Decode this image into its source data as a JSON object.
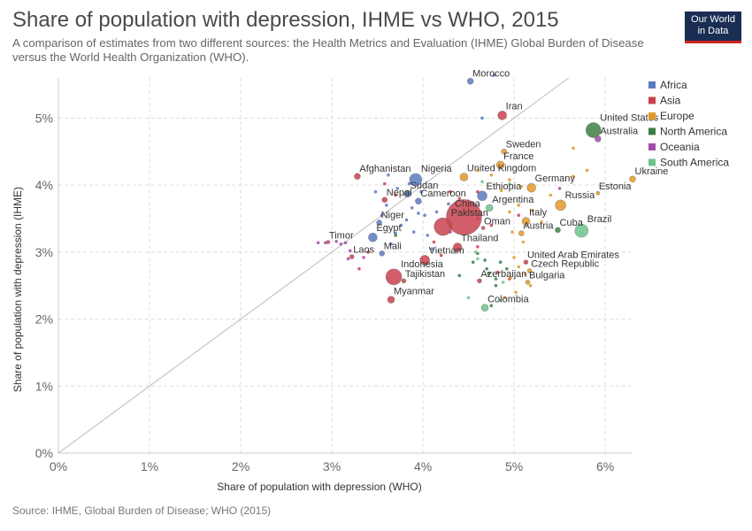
{
  "title": "Share of population with depression, IHME vs WHO, 2015",
  "subtitle": "A comparison of estimates from two different sources: the Health Metrics and Evaluation (IHME) Global Burden of Disease versus the World Health Organization (WHO).",
  "logo": {
    "line1": "Our World",
    "line2": "in Data"
  },
  "source": "Source: IHME, Global Burden of Disease; WHO (2015)",
  "chart_data": {
    "type": "scatter",
    "xlabel": "Share of population with depression (WHO)",
    "ylabel": "Share of population with depression (IHME)",
    "xlim": [
      0,
      6.3
    ],
    "ylim": [
      0,
      5.6
    ],
    "xticks": [
      0,
      1,
      2,
      3,
      4,
      5,
      6
    ],
    "yticks": [
      0,
      1,
      2,
      3,
      4,
      5
    ],
    "x_tick_labels": [
      "0%",
      "1%",
      "2%",
      "3%",
      "4%",
      "5%",
      "6%"
    ],
    "y_tick_labels": [
      "0%",
      "1%",
      "2%",
      "3%",
      "4%",
      "5%"
    ],
    "grid": true,
    "diagonal_line": true,
    "legend_position": "right",
    "series": [
      {
        "name": "Africa",
        "color": "#5b7bc1"
      },
      {
        "name": "Asia",
        "color": "#c9424d"
      },
      {
        "name": "Europe",
        "color": "#e39927"
      },
      {
        "name": "North America",
        "color": "#3d7f44"
      },
      {
        "name": "Oceania",
        "color": "#a34bab"
      },
      {
        "name": "South America",
        "color": "#6cc38e"
      }
    ],
    "labeled_points": [
      {
        "label": "Morocco",
        "region": "Africa",
        "x": 4.52,
        "y": 5.55,
        "r": 3.5
      },
      {
        "label": "Iran",
        "region": "Asia",
        "x": 4.87,
        "y": 5.04,
        "r": 5
      },
      {
        "label": "United States",
        "region": "North America",
        "x": 5.87,
        "y": 4.82,
        "r": 8.5
      },
      {
        "label": "Australia",
        "region": "Oceania",
        "x": 5.92,
        "y": 4.69,
        "r": 3.5
      },
      {
        "label": "Sweden",
        "region": "Europe",
        "x": 4.89,
        "y": 4.5,
        "r": 3
      },
      {
        "label": "France",
        "region": "Europe",
        "x": 4.85,
        "y": 4.3,
        "r": 4.5
      },
      {
        "label": "United Kingdom",
        "region": "Europe",
        "x": 4.45,
        "y": 4.12,
        "r": 4.5
      },
      {
        "label": "Afghanistan",
        "region": "Asia",
        "x": 3.28,
        "y": 4.13,
        "r": 3.5
      },
      {
        "label": "Nigeria",
        "region": "Africa",
        "x": 3.92,
        "y": 4.08,
        "r": 7
      },
      {
        "label": "Ukraine",
        "region": "Europe",
        "x": 6.3,
        "y": 4.09,
        "r": 3.5
      },
      {
        "label": "Germany",
        "region": "Europe",
        "x": 5.19,
        "y": 3.96,
        "r": 5
      },
      {
        "label": "Estonia",
        "region": "Europe",
        "x": 5.92,
        "y": 3.88,
        "r": 2
      },
      {
        "label": "Ethiopia",
        "region": "Africa",
        "x": 4.65,
        "y": 3.84,
        "r": 5.5
      },
      {
        "label": "Sudan",
        "region": "Africa",
        "x": 3.83,
        "y": 3.87,
        "r": 4
      },
      {
        "label": "Cameroon",
        "region": "Africa",
        "x": 3.95,
        "y": 3.76,
        "r": 3.5
      },
      {
        "label": "Nepal",
        "region": "Asia",
        "x": 3.58,
        "y": 3.78,
        "r": 3
      },
      {
        "label": "Russia",
        "region": "Europe",
        "x": 5.51,
        "y": 3.7,
        "r": 6
      },
      {
        "label": "Argentina",
        "region": "South America",
        "x": 4.73,
        "y": 3.66,
        "r": 4
      },
      {
        "label": "China",
        "region": "Asia",
        "x": 4.45,
        "y": 3.52,
        "r": 20
      },
      {
        "label": "Niger",
        "region": "Africa",
        "x": 3.52,
        "y": 3.44,
        "r": 3
      },
      {
        "label": "Pakistan",
        "region": "Asia",
        "x": 4.22,
        "y": 3.38,
        "r": 10
      },
      {
        "label": "Oman",
        "region": "Asia",
        "x": 4.66,
        "y": 3.36,
        "r": 2
      },
      {
        "label": "Italy",
        "region": "Europe",
        "x": 5.13,
        "y": 3.46,
        "r": 4.5
      },
      {
        "label": "Cuba",
        "region": "North America",
        "x": 5.48,
        "y": 3.33,
        "r": 3
      },
      {
        "label": "Brazil",
        "region": "South America",
        "x": 5.74,
        "y": 3.32,
        "r": 7.5
      },
      {
        "label": "Egypt",
        "region": "Africa",
        "x": 3.45,
        "y": 3.22,
        "r": 5
      },
      {
        "label": "Austria",
        "region": "Europe",
        "x": 5.08,
        "y": 3.28,
        "r": 3
      },
      {
        "label": "Timor",
        "region": "Asia",
        "x": 2.96,
        "y": 3.15,
        "r": 2
      },
      {
        "label": "Thailand",
        "region": "Asia",
        "x": 4.38,
        "y": 3.07,
        "r": 5
      },
      {
        "label": "Mali",
        "region": "Africa",
        "x": 3.55,
        "y": 2.98,
        "r": 3
      },
      {
        "label": "Laos",
        "region": "Asia",
        "x": 3.22,
        "y": 2.93,
        "r": 2.5
      },
      {
        "label": "Vietnam",
        "region": "Asia",
        "x": 4.02,
        "y": 2.88,
        "r": 5.5
      },
      {
        "label": "United Arab Emirates",
        "region": "Asia",
        "x": 5.13,
        "y": 2.85,
        "r": 2.5
      },
      {
        "label": "Indonesia",
        "region": "Asia",
        "x": 3.68,
        "y": 2.63,
        "r": 9
      },
      {
        "label": "Tajikistan",
        "region": "Asia",
        "x": 3.79,
        "y": 2.57,
        "r": 2.5
      },
      {
        "label": "Czech Republic",
        "region": "Europe",
        "x": 5.17,
        "y": 2.72,
        "r": 2.5
      },
      {
        "label": "Azerbaijan",
        "region": "Asia",
        "x": 4.62,
        "y": 2.57,
        "r": 2.5
      },
      {
        "label": "Bulgaria",
        "region": "Europe",
        "x": 5.15,
        "y": 2.55,
        "r": 2.5
      },
      {
        "label": "Myanmar",
        "region": "Asia",
        "x": 3.65,
        "y": 2.29,
        "r": 4
      },
      {
        "label": "Colombia",
        "region": "South America",
        "x": 4.68,
        "y": 2.17,
        "r": 4
      }
    ],
    "unlabeled_points": [
      {
        "region": "Africa",
        "x": 4.78,
        "y": 5.64
      },
      {
        "region": "Africa",
        "x": 4.65,
        "y": 5.0
      },
      {
        "region": "Africa",
        "x": 3.62,
        "y": 4.15
      },
      {
        "region": "Africa",
        "x": 3.85,
        "y": 4.02
      },
      {
        "region": "Africa",
        "x": 3.72,
        "y": 3.95
      },
      {
        "region": "Africa",
        "x": 3.48,
        "y": 3.9
      },
      {
        "region": "Africa",
        "x": 3.6,
        "y": 3.7
      },
      {
        "region": "Africa",
        "x": 3.88,
        "y": 3.66
      },
      {
        "region": "Africa",
        "x": 3.95,
        "y": 3.58
      },
      {
        "region": "Africa",
        "x": 4.02,
        "y": 3.55
      },
      {
        "region": "Africa",
        "x": 3.82,
        "y": 3.48
      },
      {
        "region": "Africa",
        "x": 3.76,
        "y": 3.4
      },
      {
        "region": "Africa",
        "x": 3.9,
        "y": 3.3
      },
      {
        "region": "Africa",
        "x": 4.05,
        "y": 3.25
      },
      {
        "region": "Africa",
        "x": 3.7,
        "y": 3.28
      },
      {
        "region": "Africa",
        "x": 4.15,
        "y": 3.6
      },
      {
        "region": "Africa",
        "x": 4.28,
        "y": 3.72
      },
      {
        "region": "Africa",
        "x": 3.65,
        "y": 3.12
      },
      {
        "region": "Africa",
        "x": 3.98,
        "y": 3.9
      },
      {
        "region": "Africa",
        "x": 4.1,
        "y": 3.05
      },
      {
        "region": "Africa",
        "x": 4.55,
        "y": 3.72
      },
      {
        "region": "Africa",
        "x": 3.55,
        "y": 3.55
      },
      {
        "region": "Asia",
        "x": 3.58,
        "y": 4.02
      },
      {
        "region": "Asia",
        "x": 3.7,
        "y": 3.85
      },
      {
        "region": "Asia",
        "x": 4.3,
        "y": 3.9
      },
      {
        "region": "Asia",
        "x": 4.4,
        "y": 3.8
      },
      {
        "region": "Asia",
        "x": 4.5,
        "y": 3.62
      },
      {
        "region": "Asia",
        "x": 4.6,
        "y": 3.5
      },
      {
        "region": "Asia",
        "x": 4.75,
        "y": 3.4
      },
      {
        "region": "Asia",
        "x": 4.12,
        "y": 3.15
      },
      {
        "region": "Asia",
        "x": 3.3,
        "y": 2.75
      },
      {
        "region": "Asia",
        "x": 3.4,
        "y": 3.0
      },
      {
        "region": "Asia",
        "x": 4.6,
        "y": 3.08
      },
      {
        "region": "Asia",
        "x": 4.82,
        "y": 2.7
      },
      {
        "region": "Asia",
        "x": 4.95,
        "y": 2.6
      },
      {
        "region": "Asia",
        "x": 4.6,
        "y": 3.9
      },
      {
        "region": "Asia",
        "x": 4.2,
        "y": 2.95
      },
      {
        "region": "Asia",
        "x": 5.05,
        "y": 3.55
      },
      {
        "region": "Europe",
        "x": 4.6,
        "y": 4.22
      },
      {
        "region": "Europe",
        "x": 4.75,
        "y": 4.15
      },
      {
        "region": "Europe",
        "x": 4.95,
        "y": 4.08
      },
      {
        "region": "Europe",
        "x": 5.08,
        "y": 3.98
      },
      {
        "region": "Europe",
        "x": 4.86,
        "y": 3.92
      },
      {
        "region": "Europe",
        "x": 5.65,
        "y": 4.55
      },
      {
        "region": "Europe",
        "x": 5.65,
        "y": 4.13
      },
      {
        "region": "Europe",
        "x": 5.8,
        "y": 4.22
      },
      {
        "region": "Europe",
        "x": 5.05,
        "y": 3.7
      },
      {
        "region": "Europe",
        "x": 4.95,
        "y": 3.6
      },
      {
        "region": "Europe",
        "x": 5.2,
        "y": 3.62
      },
      {
        "region": "Europe",
        "x": 4.98,
        "y": 3.3
      },
      {
        "region": "Europe",
        "x": 5.1,
        "y": 3.15
      },
      {
        "region": "Europe",
        "x": 5.0,
        "y": 2.92
      },
      {
        "region": "Europe",
        "x": 5.05,
        "y": 2.78
      },
      {
        "region": "Europe",
        "x": 5.12,
        "y": 2.67
      },
      {
        "region": "Europe",
        "x": 4.96,
        "y": 2.62
      },
      {
        "region": "Europe",
        "x": 5.02,
        "y": 2.4
      },
      {
        "region": "Europe",
        "x": 5.18,
        "y": 2.5
      },
      {
        "region": "Europe",
        "x": 4.9,
        "y": 2.32
      },
      {
        "region": "Europe",
        "x": 5.4,
        "y": 3.85
      },
      {
        "region": "Europe",
        "x": 5.3,
        "y": 3.45
      },
      {
        "region": "North America",
        "x": 4.68,
        "y": 2.88
      },
      {
        "region": "North America",
        "x": 4.55,
        "y": 2.85
      },
      {
        "region": "North America",
        "x": 4.7,
        "y": 2.75
      },
      {
        "region": "North America",
        "x": 4.85,
        "y": 2.85
      },
      {
        "region": "North America",
        "x": 4.92,
        "y": 2.75
      },
      {
        "region": "North America",
        "x": 4.8,
        "y": 2.6
      },
      {
        "region": "North America",
        "x": 4.72,
        "y": 2.68
      },
      {
        "region": "North America",
        "x": 4.4,
        "y": 2.65
      },
      {
        "region": "North America",
        "x": 4.8,
        "y": 2.5
      },
      {
        "region": "North America",
        "x": 4.75,
        "y": 2.2
      },
      {
        "region": "North America",
        "x": 4.6,
        "y": 2.98
      },
      {
        "region": "North America",
        "x": 3.7,
        "y": 3.25
      },
      {
        "region": "South America",
        "x": 4.65,
        "y": 4.05
      },
      {
        "region": "South America",
        "x": 4.95,
        "y": 4.02
      },
      {
        "region": "South America",
        "x": 4.58,
        "y": 3.0
      },
      {
        "region": "South America",
        "x": 4.88,
        "y": 2.55
      },
      {
        "region": "South America",
        "x": 4.5,
        "y": 2.32
      },
      {
        "region": "South America",
        "x": 4.85,
        "y": 2.28
      },
      {
        "region": "South America",
        "x": 4.6,
        "y": 2.9
      },
      {
        "region": "Oceania",
        "x": 2.85,
        "y": 3.14
      },
      {
        "region": "Oceania",
        "x": 2.93,
        "y": 3.14
      },
      {
        "region": "Oceania",
        "x": 3.05,
        "y": 3.16
      },
      {
        "region": "Oceania",
        "x": 3.1,
        "y": 3.12
      },
      {
        "region": "Oceania",
        "x": 3.15,
        "y": 3.14
      },
      {
        "region": "Oceania",
        "x": 3.2,
        "y": 3.02
      },
      {
        "region": "Oceania",
        "x": 3.18,
        "y": 2.9
      },
      {
        "region": "Oceania",
        "x": 3.35,
        "y": 2.92
      },
      {
        "region": "Oceania",
        "x": 5.5,
        "y": 3.95
      },
      {
        "region": "Oceania",
        "x": 4.3,
        "y": 3.3
      }
    ]
  }
}
